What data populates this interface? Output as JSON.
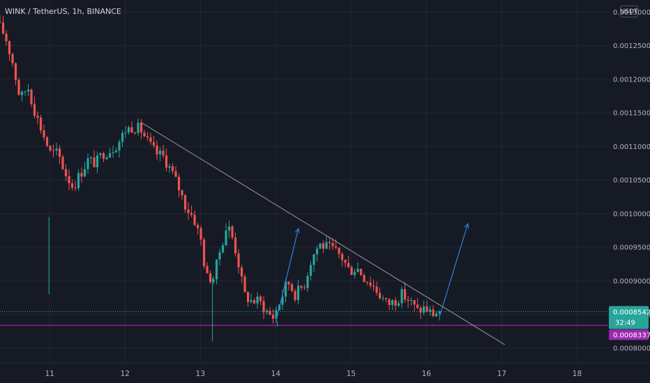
{
  "header": {
    "title": "WINK / TetherUS, 1h, BINANCE",
    "currency": "USDT"
  },
  "colors": {
    "background": "#161a25",
    "grid": "#232733",
    "up": "#26a69a",
    "down": "#ef5350",
    "trendline": "#9598a1",
    "arrow": "#2f7fd9",
    "support_line": "#9c27b0",
    "last_price_line": "#26a69a"
  },
  "chart_data": {
    "type": "candlestick",
    "y_ticks": [
      "0.0013000",
      "0.0012500",
      "0.0012000",
      "0.0011500",
      "0.0011000",
      "0.0010500",
      "0.0010000",
      "0.0009500",
      "0.0009000",
      "0.0008500",
      "0.0008000"
    ],
    "x_ticks": [
      "11",
      "12",
      "13",
      "14",
      "15",
      "16",
      "17",
      "18"
    ],
    "ylim": [
      0.000778,
      0.001318
    ],
    "xlim": [
      10.34,
      18.44
    ],
    "grid": true,
    "current_price": {
      "value": 0.0008542,
      "label": "0.0008542",
      "countdown": "32:49"
    },
    "support_level": {
      "value": 0.0008337,
      "label": "0.0008337"
    },
    "trendline": {
      "from": [
        12.21,
        0.001136
      ],
      "to": [
        17.04,
        0.000805
      ]
    },
    "arrows": [
      {
        "from": [
          14.0,
          0.000838
        ],
        "to": [
          14.3,
          0.000978
        ]
      },
      {
        "from": [
          16.18,
          0.000849
        ],
        "to": [
          16.55,
          0.000985
        ]
      }
    ],
    "waypoints": [
      [
        10.34,
        0.001285
      ],
      [
        10.45,
        0.001265
      ],
      [
        10.55,
        0.001225
      ],
      [
        10.65,
        0.00117
      ],
      [
        10.75,
        0.00119
      ],
      [
        10.85,
        0.00115
      ],
      [
        10.95,
        0.00112
      ],
      [
        11.05,
        0.00109
      ],
      [
        11.15,
        0.00109
      ],
      [
        11.25,
        0.00106
      ],
      [
        11.35,
        0.00104
      ],
      [
        11.45,
        0.00106
      ],
      [
        11.55,
        0.00108
      ],
      [
        11.65,
        0.001075
      ],
      [
        11.75,
        0.00109
      ],
      [
        11.85,
        0.001095
      ],
      [
        11.95,
        0.001105
      ],
      [
        12.05,
        0.001125
      ],
      [
        12.15,
        0.00113
      ],
      [
        12.25,
        0.001125
      ],
      [
        12.35,
        0.001105
      ],
      [
        12.45,
        0.00109
      ],
      [
        12.55,
        0.001085
      ],
      [
        12.65,
        0.001065
      ],
      [
        12.75,
        0.00104
      ],
      [
        12.85,
        0.00101
      ],
      [
        12.95,
        0.000995
      ],
      [
        13.05,
        0.00096
      ],
      [
        13.12,
        0.000905
      ],
      [
        13.22,
        0.000905
      ],
      [
        13.3,
        0.000945
      ],
      [
        13.4,
        0.000985
      ],
      [
        13.48,
        0.00096
      ],
      [
        13.55,
        0.000925
      ],
      [
        13.62,
        0.00088
      ],
      [
        13.72,
        0.00087
      ],
      [
        13.82,
        0.00087
      ],
      [
        13.92,
        0.000855
      ],
      [
        14.0,
        0.000845
      ],
      [
        14.1,
        0.00087
      ],
      [
        14.2,
        0.0009
      ],
      [
        14.3,
        0.00088
      ],
      [
        14.42,
        0.000895
      ],
      [
        14.52,
        0.000935
      ],
      [
        14.62,
        0.000955
      ],
      [
        14.72,
        0.00095
      ],
      [
        14.82,
        0.000945
      ],
      [
        14.92,
        0.000935
      ],
      [
        15.02,
        0.000915
      ],
      [
        15.12,
        0.00092
      ],
      [
        15.22,
        0.000905
      ],
      [
        15.32,
        0.000895
      ],
      [
        15.42,
        0.00088
      ],
      [
        15.52,
        0.000865
      ],
      [
        15.62,
        0.00087
      ],
      [
        15.72,
        0.00088
      ],
      [
        15.82,
        0.00087
      ],
      [
        15.92,
        0.000855
      ],
      [
        16.02,
        0.00086
      ],
      [
        16.12,
        0.00085
      ],
      [
        16.2,
        0.000855
      ]
    ]
  }
}
